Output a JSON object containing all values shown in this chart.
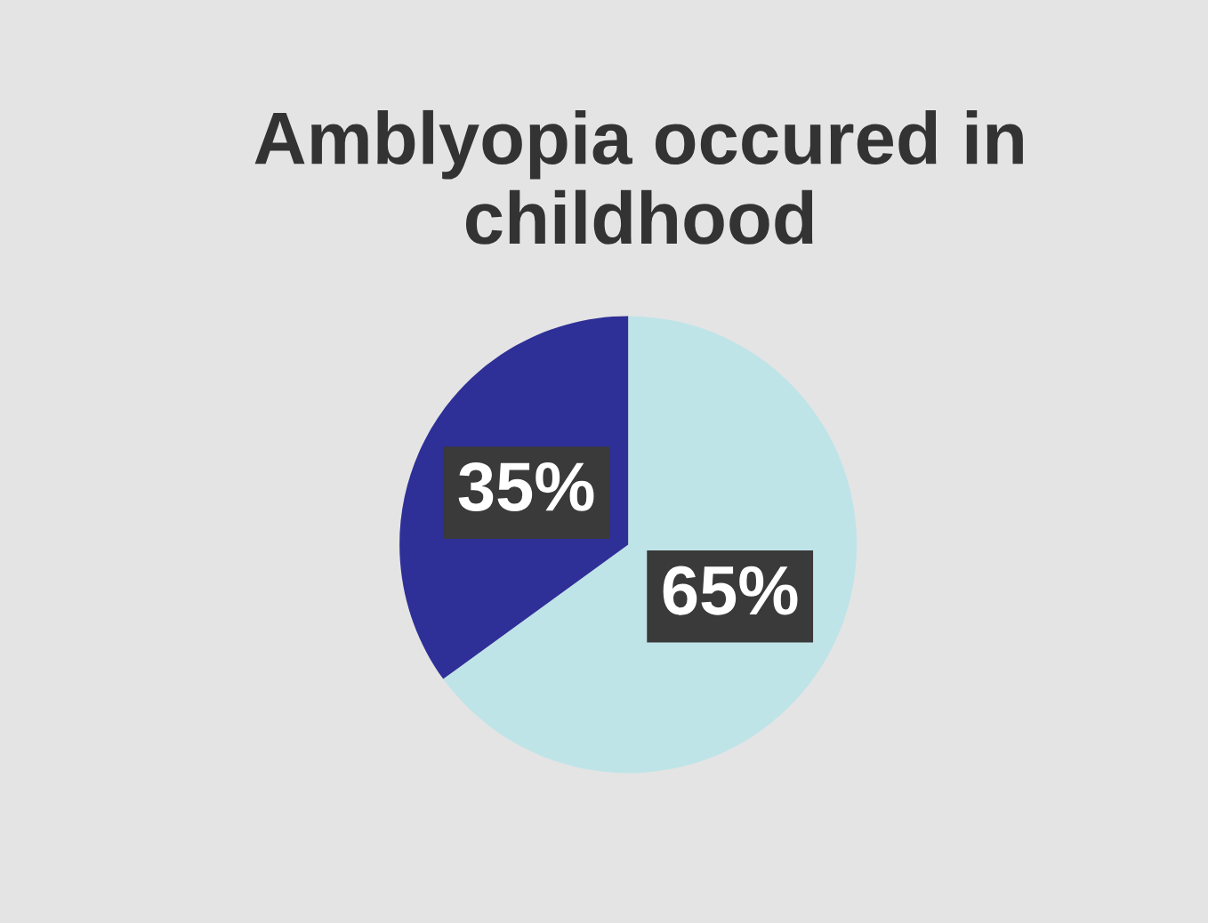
{
  "chart_data": {
    "type": "pie",
    "title": "Amblyopia occured in childhood",
    "categories": [
      null,
      null
    ],
    "values": [
      65,
      35
    ],
    "colors": [
      "#bfe4e8",
      "#2f2f98"
    ],
    "value_labels": [
      "65%",
      "35%"
    ],
    "legend": false
  }
}
